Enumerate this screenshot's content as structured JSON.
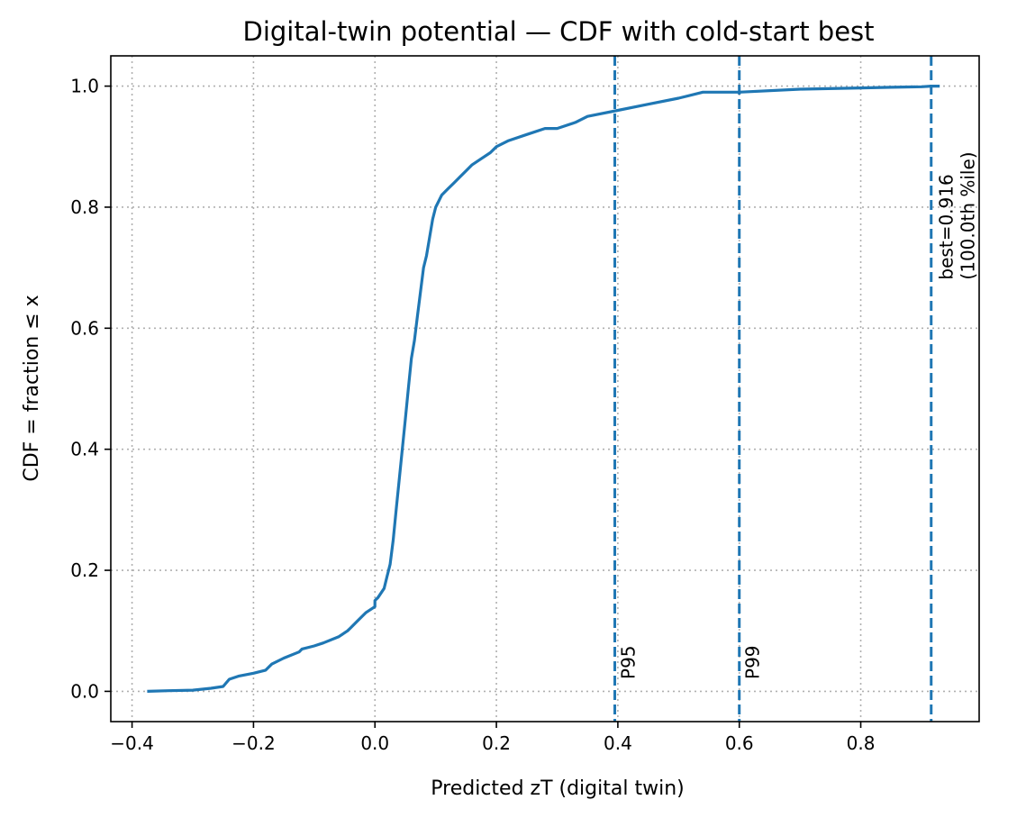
{
  "chart_data": {
    "type": "line",
    "title": "Digital-twin potential — CDF with cold-start best",
    "xlabel": "Predicted zT (digital twin)",
    "ylabel": "CDF = fraction ≤ x",
    "xlim": [
      -0.435,
      0.995
    ],
    "ylim": [
      -0.05,
      1.05
    ],
    "xticks": [
      -0.4,
      -0.2,
      0.0,
      0.2,
      0.4,
      0.6,
      0.8
    ],
    "xtick_labels": [
      "−0.4",
      "−0.2",
      "0.0",
      "0.2",
      "0.4",
      "0.6",
      "0.8"
    ],
    "yticks": [
      0.0,
      0.2,
      0.4,
      0.6,
      0.8,
      1.0
    ],
    "ytick_labels": [
      "0.0",
      "0.2",
      "0.4",
      "0.6",
      "0.8",
      "1.0"
    ],
    "grid": true,
    "line_color": "#1f77b4",
    "series": [
      {
        "x": [
          -0.375,
          -0.34,
          -0.3,
          -0.27,
          -0.25,
          -0.245,
          -0.24,
          -0.225,
          -0.2,
          -0.18,
          -0.175,
          -0.17,
          -0.15,
          -0.125,
          -0.12,
          -0.1,
          -0.085,
          -0.06,
          -0.045,
          -0.04,
          -0.03,
          -0.02,
          -0.015,
          0.0,
          0.0,
          0.005,
          0.015,
          0.02,
          0.025,
          0.03,
          0.035,
          0.04,
          0.045,
          0.05,
          0.055,
          0.06,
          0.065,
          0.07,
          0.075,
          0.08,
          0.085,
          0.09,
          0.095,
          0.1,
          0.11,
          0.12,
          0.13,
          0.14,
          0.15,
          0.16,
          0.175,
          0.19,
          0.2,
          0.22,
          0.25,
          0.28,
          0.3,
          0.33,
          0.35,
          0.4,
          0.45,
          0.5,
          0.54,
          0.6,
          0.7,
          0.8,
          0.85,
          0.9,
          0.916,
          0.93
        ],
        "y": [
          0.0,
          0.001,
          0.002,
          0.005,
          0.008,
          0.014,
          0.02,
          0.025,
          0.03,
          0.035,
          0.04,
          0.045,
          0.055,
          0.065,
          0.07,
          0.075,
          0.08,
          0.09,
          0.1,
          0.105,
          0.115,
          0.125,
          0.13,
          0.14,
          0.15,
          0.155,
          0.17,
          0.19,
          0.21,
          0.25,
          0.3,
          0.35,
          0.4,
          0.45,
          0.5,
          0.55,
          0.58,
          0.62,
          0.66,
          0.7,
          0.72,
          0.75,
          0.78,
          0.8,
          0.82,
          0.83,
          0.84,
          0.85,
          0.86,
          0.87,
          0.88,
          0.89,
          0.9,
          0.91,
          0.92,
          0.93,
          0.93,
          0.94,
          0.95,
          0.96,
          0.97,
          0.98,
          0.99,
          0.99,
          0.995,
          0.997,
          0.998,
          0.999,
          1.0,
          1.0
        ]
      }
    ],
    "vlines": [
      {
        "x": 0.395,
        "label": "P95"
      },
      {
        "x": 0.6,
        "label": "P99"
      },
      {
        "x": 0.916,
        "label": "best=0.916",
        "label2": "(100.0th %ile)"
      }
    ]
  }
}
